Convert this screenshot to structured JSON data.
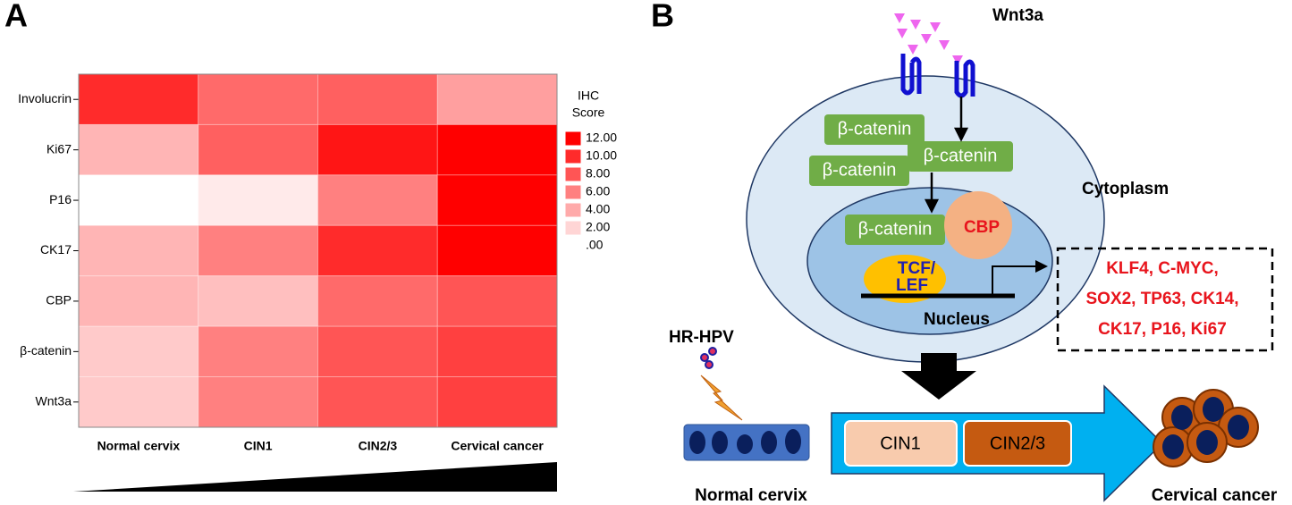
{
  "panels": [
    "A",
    "B"
  ],
  "chart_data": {
    "type": "heatmap",
    "rows": [
      "Involucrin",
      "Ki67",
      "P16",
      "CK17",
      "CBP",
      "β-catenin",
      "Wnt3a"
    ],
    "columns": [
      "Normal cervix",
      "CIN1",
      "CIN2/3",
      "Cervical cancer"
    ],
    "values": [
      [
        10,
        7,
        7.5,
        4.5
      ],
      [
        3.5,
        7.5,
        11,
        12
      ],
      [
        0,
        1,
        6,
        12
      ],
      [
        3.5,
        6,
        10,
        12
      ],
      [
        3.5,
        3,
        7,
        8
      ],
      [
        2.5,
        6,
        8,
        9
      ],
      [
        2.5,
        6,
        8,
        9
      ]
    ],
    "zlim": [
      0,
      12
    ],
    "colorscale": [
      "#ffffff",
      "#ff0000"
    ],
    "legend_title": [
      "IHC",
      "Score"
    ],
    "legend_ticks": [
      {
        "value": 12,
        "label": "12.00"
      },
      {
        "value": 10,
        "label": "10.00"
      },
      {
        "value": 8,
        "label": "8.00"
      },
      {
        "value": 6,
        "label": "6.00"
      },
      {
        "value": 4,
        "label": "4.00"
      },
      {
        "value": 2,
        "label": "2.00"
      },
      {
        "value": 0,
        "label": ".00"
      }
    ]
  },
  "diagram": {
    "ligand": "Wnt3a",
    "beta_catenin": [
      "β-catenin",
      "β-catenin",
      "β-catenin",
      "β-catenin"
    ],
    "cbp": "CBP",
    "tcf": [
      "TCF/",
      "LEF"
    ],
    "cytoplasm": "Cytoplasm",
    "nucleus": "Nucleus",
    "targets": [
      "KLF4, C-MYC,",
      "SOX2, TP63, CK14,",
      "CK17, P16, Ki67"
    ],
    "virus": "HR-HPV",
    "stages": [
      "CIN1",
      "CIN2/3"
    ],
    "start": "Normal cervix",
    "end": "Cervical cancer"
  }
}
